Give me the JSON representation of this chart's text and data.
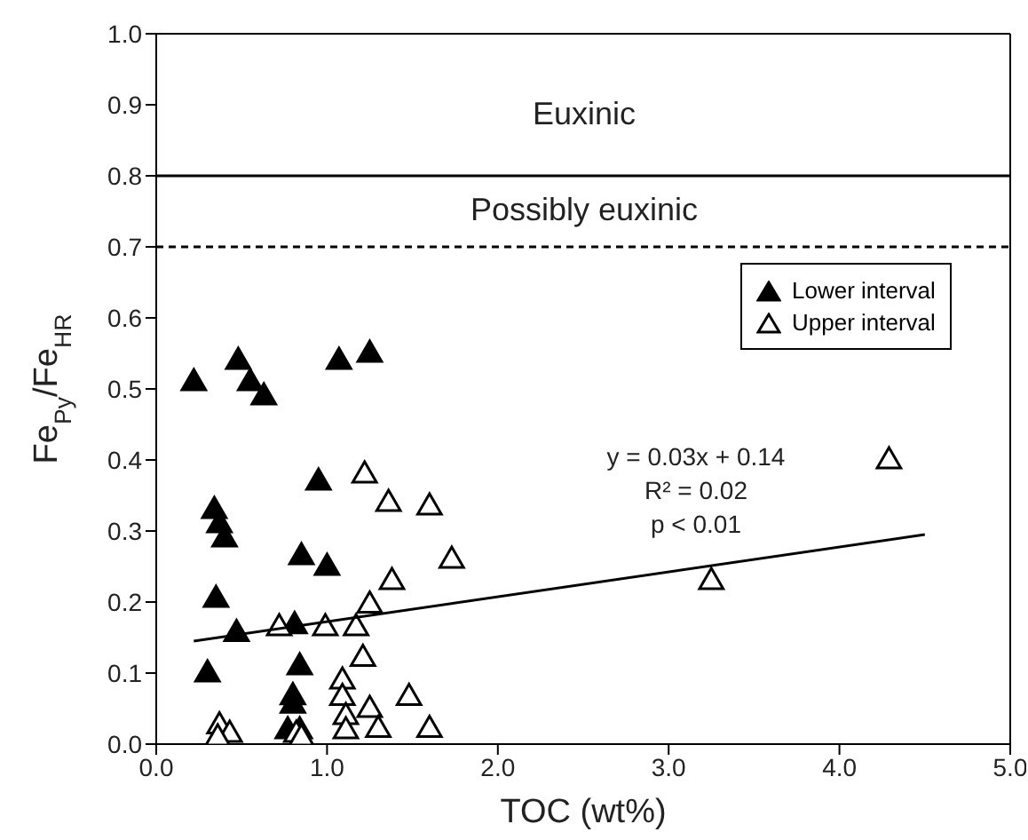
{
  "chart_data": {
    "type": "scatter",
    "xlabel": "TOC (wt%)",
    "ylabel": "Fe$_{Py}$/Fe$_{HR}$",
    "xlim": [
      0,
      5
    ],
    "xticks": [
      {
        "value": 0,
        "label": "0.0"
      },
      {
        "value": 1,
        "label": "1.0"
      },
      {
        "value": 2,
        "label": "2.0"
      },
      {
        "value": 3,
        "label": "3.0"
      },
      {
        "value": 4,
        "label": "4.0"
      },
      {
        "value": 5,
        "label": "5.0"
      }
    ],
    "ylim": [
      0,
      1
    ],
    "yticks": [
      {
        "value": 0,
        "label": "0.0"
      },
      0.1,
      0.2,
      0.3,
      0.4,
      0.5,
      0.6,
      0.7,
      0.8,
      0.9,
      {
        "value": 1,
        "label": "1.0"
      }
    ],
    "legend": "top right",
    "series": [
      {
        "name": "Lower interval",
        "color": "#000000",
        "marker": "triangle",
        "x": [
          0.22,
          0.48,
          0.55,
          0.63,
          1.07,
          1.25,
          0.95,
          0.34,
          0.37,
          0.4,
          0.85,
          1.0,
          0.35,
          0.47,
          0.81,
          0.3,
          0.84,
          0.8,
          0.8,
          0.77,
          0.84
        ],
        "values": [
          0.51,
          0.54,
          0.51,
          0.49,
          0.54,
          0.55,
          0.37,
          0.33,
          0.31,
          0.29,
          0.265,
          0.25,
          0.205,
          0.157,
          0.168,
          0.1,
          0.11,
          0.068,
          0.056,
          0.02,
          0.02
        ]
      },
      {
        "name": "Upper interval",
        "color": "#ffffff",
        "marker": "triangle",
        "x": [
          1.22,
          0.72,
          0.99,
          1.17,
          1.25,
          1.21,
          1.36,
          1.6,
          1.73,
          1.38,
          1.48,
          1.6,
          1.25,
          1.3,
          1.09,
          1.09,
          1.11,
          1.11,
          0.37,
          0.43,
          0.36,
          0.82,
          0.85,
          4.29,
          3.25
        ],
        "values": [
          0.38,
          0.165,
          0.165,
          0.165,
          0.197,
          0.122,
          0.34,
          0.335,
          0.26,
          0.23,
          0.067,
          0.022,
          0.05,
          0.022,
          0.09,
          0.067,
          0.04,
          0.02,
          0.027,
          0.015,
          0.01,
          0.015,
          0.01,
          0.4,
          0.23
        ]
      },
      {
        "type": "line",
        "color": "#000000",
        "marker": "none",
        "x": [
          0.22,
          4.5
        ],
        "values": [
          0.145,
          0.295
        ]
      }
    ],
    "ref_lines": [
      {
        "axis": "y",
        "value": 0.8,
        "line_style": "solid",
        "color": "#000000"
      },
      {
        "axis": "y",
        "value": 0.7,
        "line_style": "dashed",
        "color": "#000000"
      }
    ],
    "annotations": [
      "Euxinic",
      "Possibly euxinic",
      "y = 0.03x + 0.14",
      "R² = 0.02",
      "p < 0.01"
    ]
  }
}
